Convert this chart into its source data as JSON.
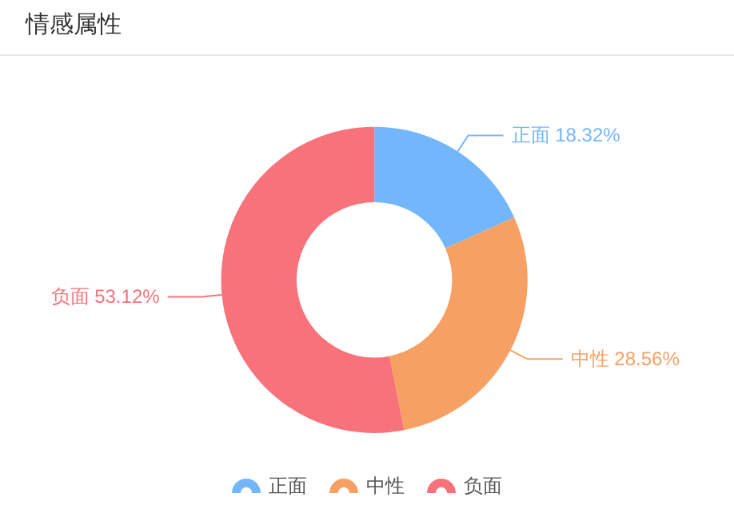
{
  "chart_data": {
    "type": "donut",
    "title": "情感属性",
    "categories": [
      "正面",
      "中性",
      "负面"
    ],
    "values": [
      18.32,
      28.56,
      53.12
    ],
    "colors": [
      "#74b6fb",
      "#f7a064",
      "#f7727a"
    ],
    "value_labels": [
      "18.32%",
      "28.56%",
      "53.12%"
    ],
    "legend": "bottom"
  }
}
